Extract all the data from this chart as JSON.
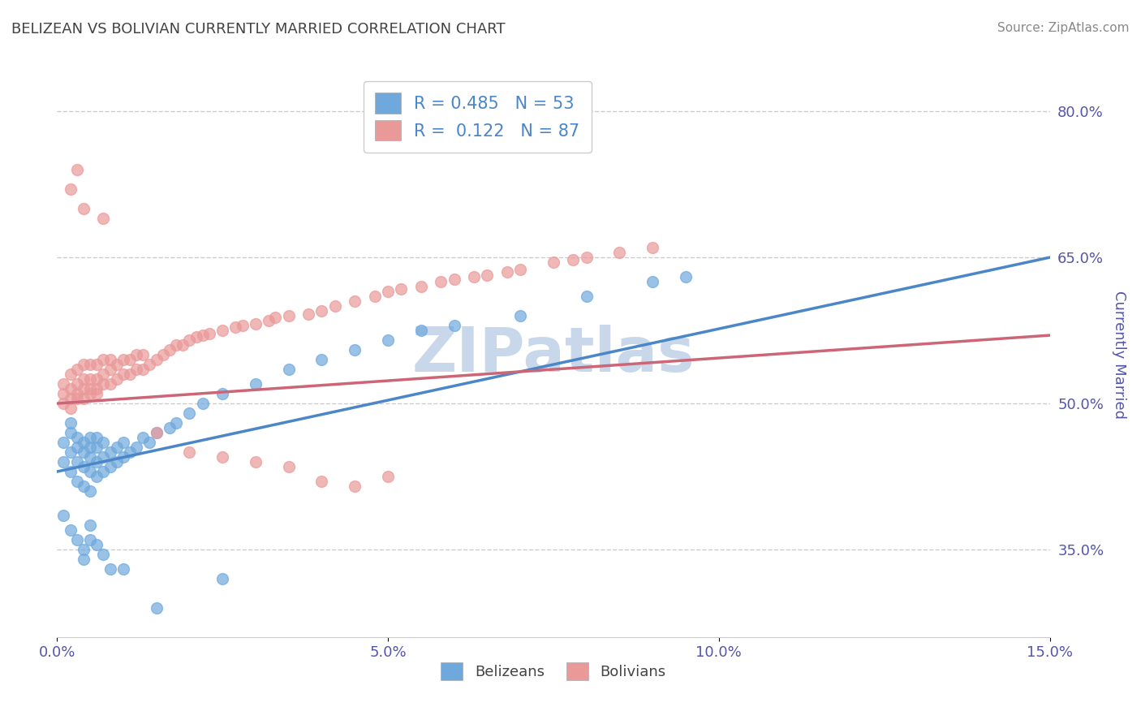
{
  "title": "BELIZEAN VS BOLIVIAN CURRENTLY MARRIED CORRELATION CHART",
  "source_text": "Source: ZipAtlas.com",
  "ylabel": "Currently Married",
  "xlim": [
    0.0,
    0.15
  ],
  "ylim": [
    0.26,
    0.84
  ],
  "xticks": [
    0.0,
    0.05,
    0.1,
    0.15
  ],
  "xtick_labels": [
    "0.0%",
    "5.0%",
    "10.0%",
    "15.0%"
  ],
  "yticks": [
    0.35,
    0.5,
    0.65,
    0.8
  ],
  "ytick_labels": [
    "35.0%",
    "50.0%",
    "65.0%",
    "80.0%"
  ],
  "belizean_color": "#6fa8dc",
  "bolivian_color": "#ea9999",
  "belizean_line_color": "#4a86c8",
  "bolivian_line_color": "#cc6677",
  "belizean_R": 0.485,
  "belizean_N": 53,
  "bolivian_R": 0.122,
  "bolivian_N": 87,
  "watermark": "ZIPatlas",
  "watermark_color": "#c8d8ea",
  "title_color": "#434343",
  "axis_label_color": "#5555aa",
  "tick_color": "#5555aa",
  "grid_color": "#cccccc",
  "belizean_x": [
    0.001,
    0.001,
    0.002,
    0.002,
    0.002,
    0.002,
    0.003,
    0.003,
    0.003,
    0.003,
    0.004,
    0.004,
    0.004,
    0.004,
    0.005,
    0.005,
    0.005,
    0.005,
    0.005,
    0.006,
    0.006,
    0.006,
    0.006,
    0.007,
    0.007,
    0.007,
    0.008,
    0.008,
    0.009,
    0.009,
    0.01,
    0.01,
    0.011,
    0.012,
    0.013,
    0.014,
    0.015,
    0.017,
    0.018,
    0.02,
    0.022,
    0.025,
    0.03,
    0.035,
    0.04,
    0.045,
    0.05,
    0.055,
    0.06,
    0.07,
    0.08,
    0.09,
    0.095
  ],
  "belizean_y": [
    0.44,
    0.46,
    0.43,
    0.45,
    0.47,
    0.48,
    0.42,
    0.44,
    0.455,
    0.465,
    0.415,
    0.435,
    0.45,
    0.46,
    0.41,
    0.43,
    0.445,
    0.455,
    0.465,
    0.425,
    0.44,
    0.455,
    0.465,
    0.43,
    0.445,
    0.46,
    0.435,
    0.45,
    0.44,
    0.455,
    0.445,
    0.46,
    0.45,
    0.455,
    0.465,
    0.46,
    0.47,
    0.475,
    0.48,
    0.49,
    0.5,
    0.51,
    0.52,
    0.535,
    0.545,
    0.555,
    0.565,
    0.575,
    0.58,
    0.59,
    0.61,
    0.625,
    0.63
  ],
  "belizean_low_y": [
    0.385,
    0.37,
    0.36,
    0.34,
    0.35,
    0.36,
    0.375,
    0.355,
    0.345,
    0.33,
    0.33,
    0.29,
    0.32
  ],
  "belizean_low_x": [
    0.001,
    0.002,
    0.003,
    0.004,
    0.004,
    0.005,
    0.005,
    0.006,
    0.007,
    0.008,
    0.01,
    0.015,
    0.025
  ],
  "bolivian_x": [
    0.001,
    0.001,
    0.001,
    0.002,
    0.002,
    0.002,
    0.002,
    0.003,
    0.003,
    0.003,
    0.003,
    0.004,
    0.004,
    0.004,
    0.004,
    0.005,
    0.005,
    0.005,
    0.005,
    0.006,
    0.006,
    0.006,
    0.006,
    0.007,
    0.007,
    0.007,
    0.008,
    0.008,
    0.008,
    0.009,
    0.009,
    0.01,
    0.01,
    0.011,
    0.011,
    0.012,
    0.012,
    0.013,
    0.013,
    0.014,
    0.015,
    0.016,
    0.017,
    0.018,
    0.019,
    0.02,
    0.021,
    0.022,
    0.023,
    0.025,
    0.027,
    0.028,
    0.03,
    0.032,
    0.033,
    0.035,
    0.038,
    0.04,
    0.042,
    0.045,
    0.048,
    0.05,
    0.052,
    0.055,
    0.058,
    0.06,
    0.063,
    0.065,
    0.068,
    0.07,
    0.075,
    0.078,
    0.08,
    0.085,
    0.09,
    0.015,
    0.02,
    0.025,
    0.03,
    0.035,
    0.04,
    0.045,
    0.05,
    0.007,
    0.003,
    0.004,
    0.002
  ],
  "bolivian_y": [
    0.5,
    0.52,
    0.51,
    0.505,
    0.515,
    0.53,
    0.495,
    0.51,
    0.52,
    0.535,
    0.505,
    0.515,
    0.525,
    0.54,
    0.505,
    0.51,
    0.525,
    0.54,
    0.515,
    0.51,
    0.525,
    0.54,
    0.515,
    0.52,
    0.53,
    0.545,
    0.52,
    0.535,
    0.545,
    0.525,
    0.54,
    0.53,
    0.545,
    0.53,
    0.545,
    0.535,
    0.55,
    0.535,
    0.55,
    0.54,
    0.545,
    0.55,
    0.555,
    0.56,
    0.56,
    0.565,
    0.568,
    0.57,
    0.572,
    0.575,
    0.578,
    0.58,
    0.582,
    0.585,
    0.588,
    0.59,
    0.592,
    0.595,
    0.6,
    0.605,
    0.61,
    0.615,
    0.618,
    0.62,
    0.625,
    0.628,
    0.63,
    0.632,
    0.635,
    0.638,
    0.645,
    0.648,
    0.65,
    0.655,
    0.66,
    0.47,
    0.45,
    0.445,
    0.44,
    0.435,
    0.42,
    0.415,
    0.425,
    0.69,
    0.74,
    0.7,
    0.72
  ]
}
